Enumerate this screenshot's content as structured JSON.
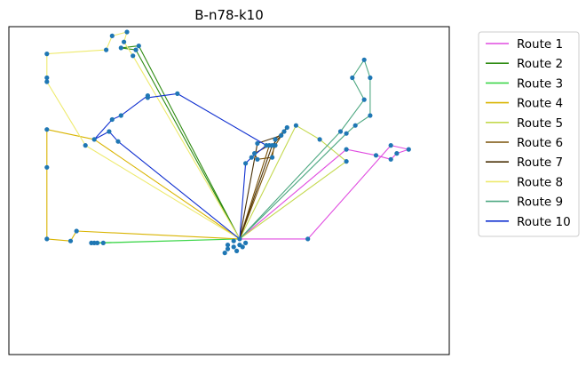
{
  "chart_data": {
    "type": "line",
    "title": "B-n78-k10",
    "xlabel": "",
    "ylabel": "",
    "grid": false,
    "axes_ticks_visible": false,
    "legend_placement": "outside-top-right",
    "depot": [
      65,
      32
    ],
    "customer_color": "#1f77b4",
    "series": [
      {
        "name": "Route 1",
        "color": "#e04ce0",
        "points": [
          [
            65,
            32
          ],
          [
            88,
            32
          ],
          [
            116,
            79
          ],
          [
            122,
            77
          ],
          [
            118,
            75
          ],
          [
            116,
            72
          ],
          [
            111,
            74
          ],
          [
            101,
            77
          ],
          [
            65,
            32
          ]
        ]
      },
      {
        "name": "Route 2",
        "color": "#2e8b12",
        "points": [
          [
            65,
            32
          ],
          [
            30,
            127
          ],
          [
            25,
            128
          ],
          [
            31,
            129
          ],
          [
            65,
            32
          ]
        ]
      },
      {
        "name": "Route 3",
        "color": "#3dd64a",
        "points": [
          [
            65,
            32
          ],
          [
            19,
            30
          ],
          [
            17,
            30
          ],
          [
            16,
            30
          ],
          [
            15,
            30
          ],
          [
            65,
            32
          ]
        ]
      },
      {
        "name": "Route 4",
        "color": "#d9b400",
        "points": [
          [
            65,
            32
          ],
          [
            10,
            36
          ],
          [
            8,
            31
          ],
          [
            0,
            32
          ],
          [
            0,
            68
          ],
          [
            0,
            87
          ],
          [
            16,
            82
          ],
          [
            65,
            32
          ]
        ]
      },
      {
        "name": "Route 5",
        "color": "#c4d94f",
        "points": [
          [
            65,
            32
          ],
          [
            101,
            71
          ],
          [
            92,
            82
          ],
          [
            84,
            89
          ],
          [
            65,
            32
          ]
        ]
      },
      {
        "name": "Route 6",
        "color": "#7a5209",
        "points": [
          [
            65,
            32
          ],
          [
            77,
            79
          ],
          [
            80,
            86
          ],
          [
            81,
            88
          ],
          [
            77,
            82
          ],
          [
            76,
            73
          ],
          [
            71,
            72
          ],
          [
            70,
            75
          ],
          [
            75,
            79
          ],
          [
            65,
            32
          ]
        ]
      },
      {
        "name": "Route 7",
        "color": "#4a3208",
        "points": [
          [
            65,
            32
          ],
          [
            71,
            80
          ],
          [
            79,
            84
          ],
          [
            76,
            79
          ],
          [
            65,
            32
          ]
        ]
      },
      {
        "name": "Route 8",
        "color": "#eeea6e",
        "points": [
          [
            65,
            32
          ],
          [
            29,
            124
          ],
          [
            26,
            131
          ],
          [
            27,
            136
          ],
          [
            22,
            134
          ],
          [
            20,
            127
          ],
          [
            0,
            125
          ],
          [
            0,
            113
          ],
          [
            0,
            111
          ],
          [
            13,
            79
          ],
          [
            65,
            32
          ]
        ]
      },
      {
        "name": "Route 9",
        "color": "#4ea882",
        "points": [
          [
            65,
            32
          ],
          [
            99,
            86
          ],
          [
            107,
            102
          ],
          [
            103,
            113
          ],
          [
            107,
            122
          ],
          [
            109,
            113
          ],
          [
            109,
            94
          ],
          [
            104,
            89
          ],
          [
            101,
            85
          ],
          [
            65,
            32
          ]
        ]
      },
      {
        "name": "Route 10",
        "color": "#1030d0",
        "points": [
          [
            65,
            32
          ],
          [
            24,
            81
          ],
          [
            21,
            86
          ],
          [
            16,
            82
          ],
          [
            22,
            92
          ],
          [
            25,
            94
          ],
          [
            34,
            104
          ],
          [
            34,
            103
          ],
          [
            44,
            105
          ],
          [
            74,
            79
          ],
          [
            69,
            73
          ],
          [
            67,
            70
          ],
          [
            65,
            32
          ]
        ]
      }
    ],
    "extra_points": [
      [
        60,
        25
      ],
      [
        61,
        27
      ],
      [
        63,
        28
      ],
      [
        64,
        26
      ],
      [
        65,
        29
      ],
      [
        66,
        28
      ],
      [
        67,
        30
      ],
      [
        63,
        31
      ],
      [
        61,
        29
      ]
    ]
  }
}
